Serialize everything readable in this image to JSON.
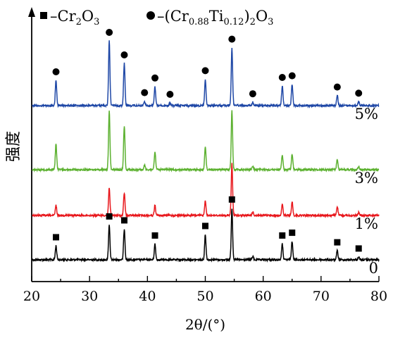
{
  "chart_data": {
    "type": "line",
    "title": "",
    "xlabel": "2θ/(°)",
    "ylabel": "强度",
    "xlim": [
      20,
      80
    ],
    "xticks": [
      "20",
      "30",
      "40",
      "50",
      "60",
      "70",
      "80"
    ],
    "legend": {
      "placement": "top",
      "entries": [
        {
          "symbol": "square",
          "prefix": "–",
          "parts": [
            [
              "Cr",
              ""
            ],
            [
              "2",
              "sub"
            ],
            [
              "O",
              ""
            ],
            [
              "3",
              "sub"
            ]
          ]
        },
        {
          "symbol": "circle",
          "prefix": "–(",
          "parts": [
            [
              "Cr",
              ""
            ],
            [
              "0.88",
              "sub"
            ],
            [
              "Ti",
              ""
            ],
            [
              "0.12",
              "sub"
            ],
            [
              ")",
              ""
            ],
            [
              "2",
              "sub"
            ],
            [
              "O",
              ""
            ],
            [
              "3",
              "sub"
            ]
          ]
        }
      ]
    },
    "series": [
      {
        "name": "0",
        "color": "#000000",
        "level": 0,
        "peaks": [
          [
            24.2,
            0.25
          ],
          [
            33.4,
            0.62
          ],
          [
            36.0,
            0.55
          ],
          [
            41.3,
            0.28
          ],
          [
            50.0,
            0.45
          ],
          [
            54.6,
            0.92
          ],
          [
            58.2,
            0.06
          ],
          [
            63.3,
            0.28
          ],
          [
            65.0,
            0.33
          ],
          [
            72.8,
            0.16
          ],
          [
            76.5,
            0.05
          ]
        ],
        "markers": [
          {
            "x": 24.2,
            "shape": "square"
          },
          {
            "x": 33.4,
            "shape": "square"
          },
          {
            "x": 36.0,
            "shape": "square"
          },
          {
            "x": 41.3,
            "shape": "square"
          },
          {
            "x": 50.0,
            "shape": "square"
          },
          {
            "x": 54.6,
            "shape": "square"
          },
          {
            "x": 63.3,
            "shape": "square"
          },
          {
            "x": 65.0,
            "shape": "square"
          },
          {
            "x": 72.8,
            "shape": "square"
          },
          {
            "x": 76.5,
            "shape": "square"
          }
        ]
      },
      {
        "name": "1%",
        "color": "#e8171c",
        "level": 1,
        "peaks": [
          [
            24.2,
            0.18
          ],
          [
            33.4,
            0.5
          ],
          [
            36.0,
            0.4
          ],
          [
            41.3,
            0.18
          ],
          [
            50.0,
            0.27
          ],
          [
            54.6,
            0.92
          ],
          [
            58.2,
            0.06
          ],
          [
            63.3,
            0.2
          ],
          [
            65.0,
            0.24
          ],
          [
            72.8,
            0.16
          ],
          [
            76.5,
            0.05
          ]
        ],
        "markers": []
      },
      {
        "name": "3%",
        "color": "#5cb130",
        "level": 2,
        "peaks": [
          [
            24.2,
            0.46
          ],
          [
            33.4,
            1.05
          ],
          [
            36.0,
            0.77
          ],
          [
            39.5,
            0.08
          ],
          [
            41.3,
            0.32
          ],
          [
            50.0,
            0.4
          ],
          [
            54.6,
            1.05
          ],
          [
            58.2,
            0.06
          ],
          [
            63.3,
            0.27
          ],
          [
            65.0,
            0.28
          ],
          [
            72.8,
            0.19
          ],
          [
            76.5,
            0.05
          ]
        ],
        "markers": []
      },
      {
        "name": "5%",
        "color": "#1e47a6",
        "level": 3,
        "peaks": [
          [
            24.2,
            0.45
          ],
          [
            33.4,
            1.15
          ],
          [
            36.0,
            0.75
          ],
          [
            39.5,
            0.08
          ],
          [
            41.3,
            0.34
          ],
          [
            43.9,
            0.05
          ],
          [
            50.0,
            0.47
          ],
          [
            54.6,
            1.03
          ],
          [
            58.2,
            0.06
          ],
          [
            63.3,
            0.35
          ],
          [
            65.0,
            0.38
          ],
          [
            72.8,
            0.18
          ],
          [
            76.5,
            0.07
          ]
        ],
        "markers": [
          {
            "x": 24.2,
            "shape": "circle"
          },
          {
            "x": 33.4,
            "shape": "circle"
          },
          {
            "x": 36.0,
            "shape": "circle"
          },
          {
            "x": 39.5,
            "shape": "circle"
          },
          {
            "x": 41.3,
            "shape": "circle"
          },
          {
            "x": 43.9,
            "shape": "circle"
          },
          {
            "x": 50.0,
            "shape": "circle"
          },
          {
            "x": 54.6,
            "shape": "circle"
          },
          {
            "x": 58.2,
            "shape": "circle"
          },
          {
            "x": 63.3,
            "shape": "circle"
          },
          {
            "x": 65.0,
            "shape": "circle"
          },
          {
            "x": 72.8,
            "shape": "circle"
          },
          {
            "x": 76.5,
            "shape": "circle"
          }
        ]
      }
    ]
  }
}
